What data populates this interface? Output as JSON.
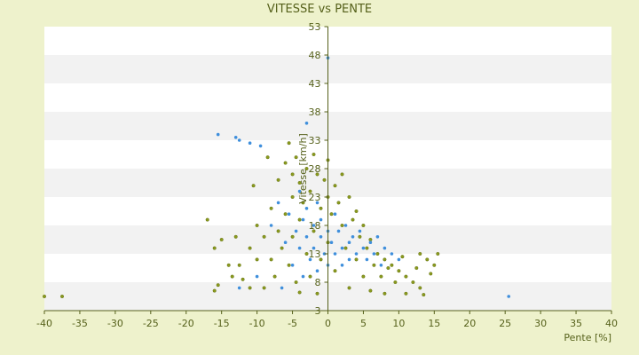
{
  "chart_data": {
    "type": "scatter",
    "title": "VITESSE vs PENTE",
    "xlabel": "Pente [%]",
    "ylabel": "Vitesse [km/h]",
    "xlim": [
      -40,
      40
    ],
    "ylim": [
      3,
      53
    ],
    "x_ticks": [
      "-40",
      "-35",
      "-30",
      "-25",
      "-20",
      "-15",
      "-10",
      "-5",
      "0",
      "5",
      "10",
      "15",
      "20",
      "25",
      "30",
      "35",
      "40"
    ],
    "y_ticks": [
      "3",
      "8",
      "13",
      "18",
      "23",
      "28",
      "33",
      "38",
      "43",
      "48",
      "53"
    ],
    "grid": "alternating horizontal bands",
    "legend": "none",
    "colors": {
      "olive": "#8a9a1e",
      "blue": "#3f8fdc",
      "band": "#f2f2f2",
      "axis": "#55601a",
      "background": "#eef2cc"
    },
    "series": [
      {
        "color": "olive",
        "points": [
          [
            -40,
            5.5
          ],
          [
            -37.5,
            5.5
          ],
          [
            -17,
            19
          ],
          [
            -16,
            14
          ],
          [
            -16,
            6.5
          ],
          [
            -15.5,
            7.5
          ],
          [
            -15,
            15.5
          ],
          [
            -14,
            11
          ],
          [
            -13.5,
            9
          ],
          [
            -13,
            16
          ],
          [
            -12.5,
            11
          ],
          [
            -12,
            8.5
          ],
          [
            -11,
            14
          ],
          [
            -11,
            7
          ],
          [
            -10.5,
            25
          ],
          [
            -10,
            18
          ],
          [
            -10,
            12
          ],
          [
            -9,
            16
          ],
          [
            -9,
            7
          ],
          [
            -8.5,
            30
          ],
          [
            -8,
            21
          ],
          [
            -8,
            12
          ],
          [
            -7.5,
            9
          ],
          [
            -7,
            26
          ],
          [
            -7,
            17
          ],
          [
            -6.5,
            14
          ],
          [
            -6,
            29
          ],
          [
            -6,
            20
          ],
          [
            -5.5,
            32.5
          ],
          [
            -5.5,
            11
          ],
          [
            -5,
            27
          ],
          [
            -5,
            23
          ],
          [
            -5,
            16
          ],
          [
            -4.5,
            30
          ],
          [
            -4.5,
            8
          ],
          [
            -4,
            25.5
          ],
          [
            -4,
            19
          ],
          [
            -4,
            6.2
          ],
          [
            -3.5,
            22
          ],
          [
            -3,
            28
          ],
          [
            -3,
            13
          ],
          [
            -2.5,
            24
          ],
          [
            -2.5,
            9
          ],
          [
            -2,
            30.5
          ],
          [
            -2,
            17
          ],
          [
            -1.5,
            27
          ],
          [
            -1.5,
            6
          ],
          [
            -1,
            21
          ],
          [
            -1,
            12
          ],
          [
            -0.5,
            26
          ],
          [
            0,
            29.5
          ],
          [
            0,
            23
          ],
          [
            0,
            15
          ],
          [
            0.5,
            20
          ],
          [
            1,
            25
          ],
          [
            1,
            10
          ],
          [
            1.5,
            22
          ],
          [
            2,
            27
          ],
          [
            2,
            18
          ],
          [
            2.5,
            14
          ],
          [
            3,
            23
          ],
          [
            3,
            7
          ],
          [
            3.5,
            19
          ],
          [
            4,
            20.5
          ],
          [
            4,
            12
          ],
          [
            4.5,
            16
          ],
          [
            5,
            18
          ],
          [
            5,
            9
          ],
          [
            5.5,
            14
          ],
          [
            6,
            15.5
          ],
          [
            6,
            6.5
          ],
          [
            6.5,
            11
          ],
          [
            7,
            13
          ],
          [
            7.5,
            9
          ],
          [
            8,
            12
          ],
          [
            8,
            6
          ],
          [
            8.5,
            10.5
          ],
          [
            9,
            11
          ],
          [
            9.5,
            8
          ],
          [
            10,
            10
          ],
          [
            10.5,
            12.5
          ],
          [
            11,
            9
          ],
          [
            11,
            6
          ],
          [
            12,
            8
          ],
          [
            12.5,
            10.5
          ],
          [
            13,
            13
          ],
          [
            13,
            7
          ],
          [
            13.5,
            5.8
          ],
          [
            14,
            12
          ],
          [
            14.5,
            9.5
          ],
          [
            15,
            11
          ],
          [
            15.5,
            13
          ]
        ]
      },
      {
        "color": "blue",
        "points": [
          [
            -15.5,
            34
          ],
          [
            -13,
            33.5
          ],
          [
            -12.5,
            33
          ],
          [
            -11,
            32.5
          ],
          [
            -9.5,
            32
          ],
          [
            -3,
            36
          ],
          [
            0,
            47.5
          ],
          [
            -8,
            18
          ],
          [
            -7,
            22
          ],
          [
            -6,
            15
          ],
          [
            -5.5,
            20
          ],
          [
            -5,
            11
          ],
          [
            -4.5,
            17
          ],
          [
            -4,
            24
          ],
          [
            -4,
            14
          ],
          [
            -3.5,
            19
          ],
          [
            -3.5,
            9
          ],
          [
            -3,
            21
          ],
          [
            -3,
            16
          ],
          [
            -2.5,
            12
          ],
          [
            -2,
            18
          ],
          [
            -2,
            14
          ],
          [
            -1.5,
            22
          ],
          [
            -1.5,
            10
          ],
          [
            -1,
            16
          ],
          [
            -1,
            19
          ],
          [
            -0.5,
            13
          ],
          [
            0,
            17
          ],
          [
            0,
            11
          ],
          [
            0.5,
            15
          ],
          [
            1,
            20
          ],
          [
            1,
            13
          ],
          [
            1.5,
            17
          ],
          [
            2,
            14
          ],
          [
            2,
            11
          ],
          [
            2.5,
            18
          ],
          [
            3,
            15
          ],
          [
            3,
            12
          ],
          [
            3.5,
            16
          ],
          [
            4,
            13
          ],
          [
            4.5,
            17
          ],
          [
            5,
            14
          ],
          [
            5.5,
            12
          ],
          [
            6,
            15
          ],
          [
            6.5,
            13
          ],
          [
            7,
            16
          ],
          [
            7.5,
            11
          ],
          [
            8,
            14
          ],
          [
            9,
            13
          ],
          [
            10,
            12
          ],
          [
            -12.5,
            7
          ],
          [
            -10,
            9
          ],
          [
            -6.5,
            7
          ],
          [
            25.5,
            5.5
          ]
        ]
      }
    ]
  }
}
